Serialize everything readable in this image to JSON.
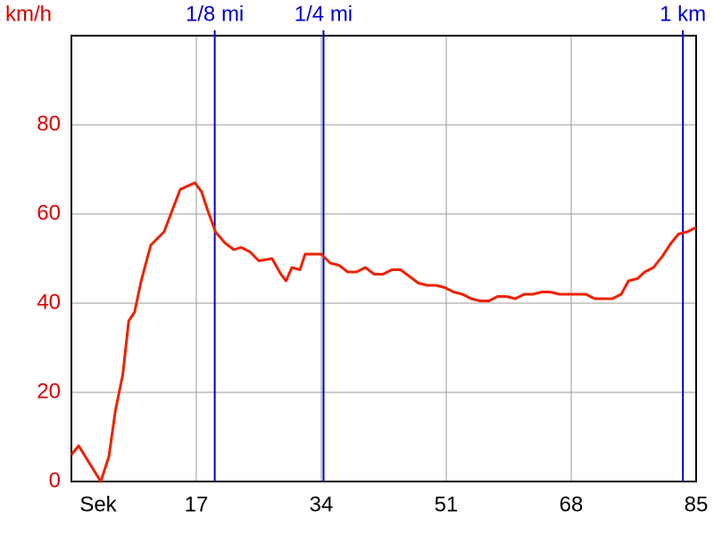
{
  "chart_data": {
    "type": "line",
    "y_label": "km/h",
    "x_label": "Sek",
    "xlim": [
      0,
      85
    ],
    "xticks": [
      17,
      34,
      51,
      68,
      85
    ],
    "ylim": [
      0,
      100
    ],
    "yticks": [
      0,
      20,
      40,
      60,
      80
    ],
    "grid": true,
    "y_color": "#dd0000",
    "marker_color": "#0000cc",
    "markers": [
      {
        "label": "1/8 mi",
        "x": 19.5
      },
      {
        "label": "1/4 mi",
        "x": 34.3
      },
      {
        "label": "1 km",
        "x": 83.2
      }
    ],
    "series": [
      {
        "name": "km/h",
        "color": "#ee2200",
        "x": [
          0,
          1,
          4,
          5.1,
          6,
          7,
          7.8,
          8.6,
          9.5,
          10.8,
          12.6,
          14.8,
          16.8,
          17.7,
          18.5,
          19.6,
          20.9,
          22.1,
          23.1,
          24.3,
          25.5,
          27.3,
          28.5,
          29.2,
          30,
          31.1,
          31.8,
          34,
          35.2,
          36.4,
          37.6,
          38.8,
          40,
          41.2,
          42.4,
          43.6,
          44.8,
          46,
          47.2,
          48.4,
          49.6,
          50.8,
          52,
          53.2,
          54.4,
          55.6,
          56.8,
          58,
          59.2,
          60.4,
          61.6,
          62.8,
          64,
          65.2,
          66.4,
          67.6,
          68.8,
          70,
          71.2,
          72.4,
          73.6,
          74.8,
          75.8,
          77,
          78,
          79.2,
          80.4,
          81.6,
          82.6,
          83.8,
          85
        ],
        "values": [
          6,
          8,
          0,
          5.6,
          16,
          24,
          36,
          38,
          45,
          53,
          56,
          65.5,
          67,
          65,
          61,
          56,
          53.5,
          52,
          52.5,
          51.5,
          49.5,
          50,
          46.5,
          45,
          48,
          47.5,
          51,
          51,
          49,
          48.5,
          47,
          47,
          48,
          46.5,
          46.5,
          47.5,
          47.5,
          46,
          44.5,
          44,
          44,
          43.5,
          42.5,
          42,
          41,
          40.5,
          40.5,
          41.5,
          41.5,
          41,
          42,
          42,
          42.5,
          42.5,
          42,
          42,
          42,
          42,
          41,
          41,
          41,
          42,
          45,
          45.5,
          47,
          48,
          50.5,
          53.5,
          55.5,
          56,
          57
        ]
      }
    ]
  }
}
